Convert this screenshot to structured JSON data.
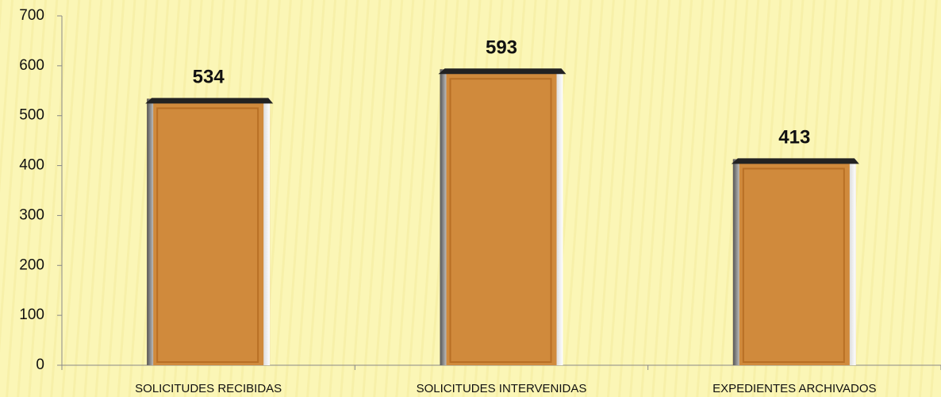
{
  "chart_data": {
    "type": "bar",
    "categories": [
      "SOLICITUDES RECIBIDAS",
      "SOLICITUDES INTERVENIDAS",
      "EXPEDIENTES ARCHIVADOS"
    ],
    "values": [
      534,
      593,
      413
    ],
    "color": "#d08a3c",
    "ylim": [
      0,
      700
    ],
    "yticks": [
      0,
      100,
      200,
      300,
      400,
      500,
      600,
      700
    ]
  }
}
